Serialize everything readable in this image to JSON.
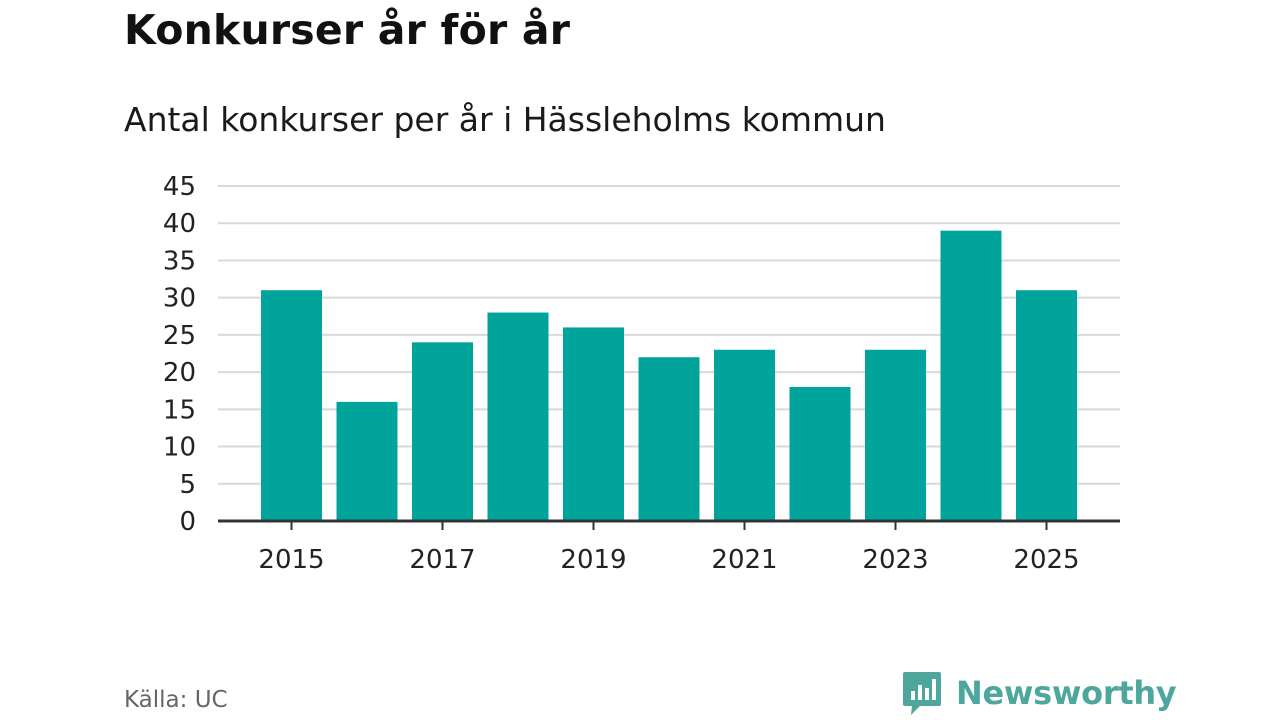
{
  "header": {
    "title": "Konkurser år för år",
    "subtitle": "Antal konkurser per år i Hässleholms kommun"
  },
  "footer": {
    "source": "Källa: UC",
    "brand": "Newsworthy",
    "brand_icon": "bar-chart-speech-bubble-icon"
  },
  "colors": {
    "bar": "#00a49a",
    "grid": "#d9d9d9",
    "axis": "#333333",
    "brand": "#4da79c"
  },
  "chart_data": {
    "type": "bar",
    "title": "Konkurser år för år",
    "subtitle": "Antal konkurser per år i Hässleholms kommun",
    "categories": [
      "2015",
      "2016",
      "2017",
      "2018",
      "2019",
      "2020",
      "2021",
      "2022",
      "2023",
      "2024",
      "2025"
    ],
    "values": [
      31,
      16,
      24,
      28,
      26,
      22,
      23,
      18,
      23,
      39,
      31
    ],
    "xticks": [
      "2015",
      "2017",
      "2019",
      "2021",
      "2023",
      "2025"
    ],
    "yticks": [
      0,
      5,
      10,
      15,
      20,
      25,
      30,
      35,
      40,
      45
    ],
    "ylim": [
      0,
      45
    ],
    "xlabel": "",
    "ylabel": "",
    "grid": true,
    "legend": "none"
  }
}
